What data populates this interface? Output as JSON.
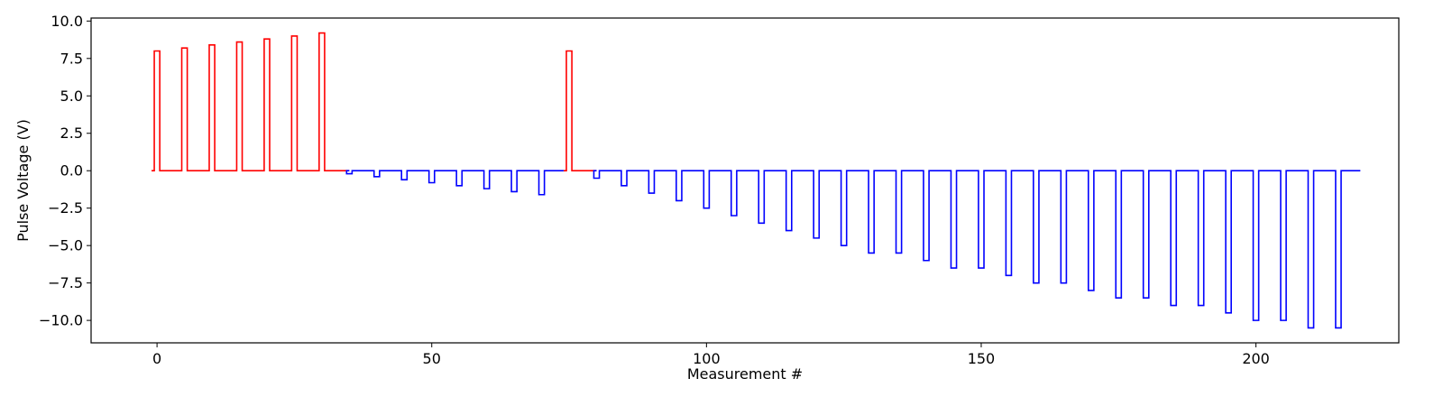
{
  "chart_data": {
    "type": "line",
    "title": "",
    "xlabel": "Measurement #",
    "ylabel": "Pulse Voltage (V)",
    "xlim": [
      -12,
      226
    ],
    "ylim": [
      -11.5,
      10.2
    ],
    "x_ticks": [
      0,
      50,
      100,
      150,
      200
    ],
    "x_tick_labels": [
      "0",
      "50",
      "100",
      "150",
      "200"
    ],
    "y_ticks": [
      10.0,
      7.5,
      5.0,
      2.5,
      0.0,
      -2.5,
      -5.0,
      -7.5,
      -10.0
    ],
    "y_tick_labels": [
      "10.0",
      "7.5",
      "5.0",
      "2.5",
      "0.0",
      "−2.5",
      "−5.0",
      "−7.5",
      "−10.0"
    ],
    "grid": false,
    "series": [
      {
        "color": "#ff0000",
        "segments": [
          {
            "x_start": -1,
            "x_end": 35,
            "baseline": 0,
            "pulses": [
              {
                "x": 0,
                "value": 8.0
              },
              {
                "x": 5,
                "value": 8.2
              },
              {
                "x": 10,
                "value": 8.4
              },
              {
                "x": 15,
                "value": 8.6
              },
              {
                "x": 20,
                "value": 8.8
              },
              {
                "x": 25,
                "value": 9.0
              },
              {
                "x": 30,
                "value": 9.2
              }
            ]
          },
          {
            "x_start": 74,
            "x_end": 80,
            "baseline": 0,
            "pulses": [
              {
                "x": 75,
                "value": 8.0
              }
            ]
          }
        ]
      },
      {
        "color": "#0000ff",
        "segments": [
          {
            "x_start": 35,
            "x_end": 74,
            "baseline": 0,
            "pulses": [
              {
                "x": 35,
                "value": -0.2
              },
              {
                "x": 40,
                "value": -0.4
              },
              {
                "x": 45,
                "value": -0.6
              },
              {
                "x": 50,
                "value": -0.8
              },
              {
                "x": 55,
                "value": -1.0
              },
              {
                "x": 60,
                "value": -1.2
              },
              {
                "x": 65,
                "value": -1.4
              },
              {
                "x": 70,
                "value": -1.6
              }
            ]
          },
          {
            "x_start": 80,
            "x_end": 219,
            "baseline": 0,
            "pulses": [
              {
                "x": 80,
                "value": -0.5
              },
              {
                "x": 85,
                "value": -1.0
              },
              {
                "x": 90,
                "value": -1.5
              },
              {
                "x": 95,
                "value": -2.0
              },
              {
                "x": 100,
                "value": -2.5
              },
              {
                "x": 105,
                "value": -3.0
              },
              {
                "x": 110,
                "value": -3.5
              },
              {
                "x": 115,
                "value": -4.0
              },
              {
                "x": 120,
                "value": -4.5
              },
              {
                "x": 125,
                "value": -5.0
              },
              {
                "x": 130,
                "value": -5.5
              },
              {
                "x": 135,
                "value": -5.5
              },
              {
                "x": 140,
                "value": -6.0
              },
              {
                "x": 145,
                "value": -6.5
              },
              {
                "x": 150,
                "value": -6.5
              },
              {
                "x": 155,
                "value": -7.0
              },
              {
                "x": 160,
                "value": -7.5
              },
              {
                "x": 165,
                "value": -7.5
              },
              {
                "x": 170,
                "value": -8.0
              },
              {
                "x": 175,
                "value": -8.5
              },
              {
                "x": 180,
                "value": -8.5
              },
              {
                "x": 185,
                "value": -9.0
              },
              {
                "x": 190,
                "value": -9.0
              },
              {
                "x": 195,
                "value": -9.5
              },
              {
                "x": 200,
                "value": -10.0
              },
              {
                "x": 205,
                "value": -10.0
              },
              {
                "x": 210,
                "value": -10.5
              },
              {
                "x": 215,
                "value": -10.5
              }
            ]
          }
        ]
      }
    ]
  }
}
